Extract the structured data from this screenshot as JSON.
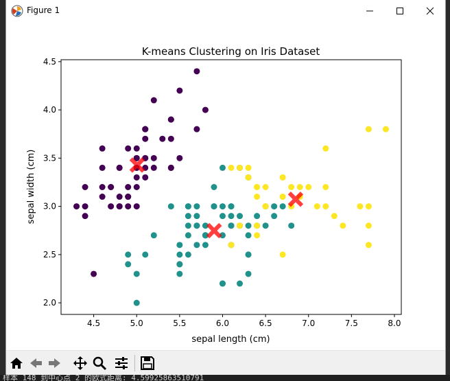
{
  "window": {
    "title": "Figure 1"
  },
  "status": {
    "text": "样本 148 到中心点 2 的欧式距离: 4.59925863510791"
  },
  "toolbar": {
    "buttons": [
      "home-icon",
      "back-icon",
      "forward-icon",
      "pan-icon",
      "zoom-icon",
      "configure-icon",
      "save-icon"
    ]
  },
  "chart_data": {
    "type": "scatter",
    "title": "K-means Clustering on Iris Dataset",
    "xlabel": "sepal length (cm)",
    "ylabel": "sepal width (cm)",
    "xlim": [
      4.12,
      8.08
    ],
    "ylim": [
      1.88,
      4.52
    ],
    "xticks": [
      "4.5",
      "5.0",
      "5.5",
      "6.0",
      "6.5",
      "7.0",
      "7.5",
      "8.0"
    ],
    "yticks": [
      "2.0",
      "2.5",
      "3.0",
      "3.5",
      "4.0",
      "4.5"
    ],
    "grid": false,
    "series": [
      {
        "color": "#440154",
        "points": [
          [
            5.1,
            3.5
          ],
          [
            4.9,
            3.0
          ],
          [
            4.7,
            3.2
          ],
          [
            4.6,
            3.1
          ],
          [
            5.0,
            3.6
          ],
          [
            5.4,
            3.9
          ],
          [
            4.6,
            3.4
          ],
          [
            5.0,
            3.4
          ],
          [
            4.4,
            2.9
          ],
          [
            4.9,
            3.1
          ],
          [
            5.4,
            3.7
          ],
          [
            4.8,
            3.4
          ],
          [
            4.8,
            3.0
          ],
          [
            4.3,
            3.0
          ],
          [
            5.8,
            4.0
          ],
          [
            5.7,
            4.4
          ],
          [
            5.4,
            3.9
          ],
          [
            5.1,
            3.5
          ],
          [
            5.7,
            3.8
          ],
          [
            5.1,
            3.8
          ],
          [
            5.4,
            3.4
          ],
          [
            5.1,
            3.7
          ],
          [
            4.6,
            3.6
          ],
          [
            5.1,
            3.3
          ],
          [
            4.8,
            3.4
          ],
          [
            5.0,
            3.0
          ],
          [
            5.0,
            3.4
          ],
          [
            5.2,
            3.5
          ],
          [
            5.2,
            3.4
          ],
          [
            4.7,
            3.2
          ],
          [
            4.8,
            3.1
          ],
          [
            5.4,
            3.4
          ],
          [
            5.2,
            4.1
          ],
          [
            5.5,
            4.2
          ],
          [
            4.9,
            3.1
          ],
          [
            5.0,
            3.2
          ],
          [
            5.5,
            3.5
          ],
          [
            4.9,
            3.6
          ],
          [
            4.4,
            3.0
          ],
          [
            5.1,
            3.4
          ],
          [
            5.0,
            3.5
          ],
          [
            4.5,
            2.3
          ],
          [
            4.4,
            3.2
          ],
          [
            5.0,
            3.5
          ],
          [
            5.1,
            3.8
          ],
          [
            4.8,
            3.0
          ],
          [
            5.1,
            3.8
          ],
          [
            4.6,
            3.2
          ],
          [
            5.3,
            3.7
          ],
          [
            5.0,
            3.3
          ],
          [
            4.9,
            3.2
          ],
          [
            4.7,
            3.0
          ]
        ]
      },
      {
        "color": "#21918c",
        "points": [
          [
            5.5,
            2.3
          ],
          [
            6.5,
            2.8
          ],
          [
            5.7,
            2.8
          ],
          [
            6.3,
            3.3
          ],
          [
            4.9,
            2.4
          ],
          [
            6.6,
            2.9
          ],
          [
            5.2,
            2.7
          ],
          [
            5.0,
            2.0
          ],
          [
            5.9,
            3.0
          ],
          [
            6.0,
            2.2
          ],
          [
            6.1,
            2.9
          ],
          [
            5.6,
            2.9
          ],
          [
            5.6,
            3.0
          ],
          [
            5.8,
            2.7
          ],
          [
            6.2,
            2.2
          ],
          [
            5.6,
            2.5
          ],
          [
            5.9,
            3.2
          ],
          [
            6.1,
            2.8
          ],
          [
            6.3,
            2.5
          ],
          [
            6.1,
            2.8
          ],
          [
            6.4,
            2.9
          ],
          [
            6.6,
            3.0
          ],
          [
            6.0,
            2.9
          ],
          [
            5.7,
            2.6
          ],
          [
            5.5,
            2.4
          ],
          [
            5.5,
            2.4
          ],
          [
            5.8,
            2.7
          ],
          [
            6.0,
            2.7
          ],
          [
            5.4,
            3.0
          ],
          [
            6.0,
            3.4
          ],
          [
            6.3,
            2.3
          ],
          [
            5.6,
            3.0
          ],
          [
            5.5,
            2.5
          ],
          [
            5.5,
            2.6
          ],
          [
            6.1,
            3.0
          ],
          [
            5.8,
            2.6
          ],
          [
            5.0,
            2.3
          ],
          [
            5.6,
            2.7
          ],
          [
            5.7,
            3.0
          ],
          [
            5.7,
            2.9
          ],
          [
            6.2,
            2.9
          ],
          [
            5.1,
            2.5
          ],
          [
            5.7,
            2.8
          ],
          [
            5.8,
            2.7
          ],
          [
            4.9,
            2.5
          ],
          [
            6.0,
            2.2
          ],
          [
            5.6,
            2.8
          ],
          [
            6.3,
            2.7
          ],
          [
            6.2,
            2.8
          ],
          [
            6.1,
            3.0
          ],
          [
            6.4,
            2.8
          ],
          [
            6.3,
            2.8
          ],
          [
            6.1,
            2.6
          ],
          [
            6.0,
            3.0
          ],
          [
            5.8,
            2.7
          ],
          [
            6.7,
            3.0
          ],
          [
            6.3,
            2.5
          ],
          [
            6.5,
            3.0
          ],
          [
            5.9,
            3.0
          ],
          [
            6.8,
            2.8
          ],
          [
            5.8,
            2.8
          ],
          [
            6.2,
            3.4
          ]
        ]
      },
      {
        "color": "#fde725",
        "points": [
          [
            7.0,
            3.2
          ],
          [
            6.4,
            3.2
          ],
          [
            6.9,
            3.1
          ],
          [
            6.7,
            3.1
          ],
          [
            6.3,
            3.3
          ],
          [
            7.1,
            3.0
          ],
          [
            6.5,
            3.0
          ],
          [
            7.6,
            3.0
          ],
          [
            7.3,
            2.9
          ],
          [
            6.7,
            2.5
          ],
          [
            7.2,
            3.6
          ],
          [
            6.5,
            3.2
          ],
          [
            6.4,
            2.7
          ],
          [
            6.8,
            3.0
          ],
          [
            6.4,
            3.2
          ],
          [
            7.7,
            3.8
          ],
          [
            7.7,
            2.6
          ],
          [
            6.9,
            3.2
          ],
          [
            7.7,
            2.8
          ],
          [
            6.7,
            3.3
          ],
          [
            7.2,
            3.2
          ],
          [
            6.2,
            2.8
          ],
          [
            6.4,
            2.8
          ],
          [
            7.2,
            3.0
          ],
          [
            7.4,
            2.8
          ],
          [
            7.9,
            3.8
          ],
          [
            6.1,
            2.6
          ],
          [
            7.7,
            3.0
          ],
          [
            6.3,
            3.4
          ],
          [
            6.4,
            3.1
          ],
          [
            6.9,
            3.1
          ],
          [
            6.7,
            3.1
          ],
          [
            6.9,
            3.1
          ],
          [
            6.8,
            3.2
          ],
          [
            6.7,
            3.3
          ],
          [
            6.5,
            3.0
          ],
          [
            6.2,
            3.4
          ],
          [
            6.1,
            3.4
          ]
        ]
      },
      {
        "color": "#ff0000",
        "marker": "x",
        "points": [
          [
            5.006,
            3.428
          ],
          [
            5.902,
            2.748
          ],
          [
            6.85,
            3.074
          ]
        ]
      }
    ]
  }
}
